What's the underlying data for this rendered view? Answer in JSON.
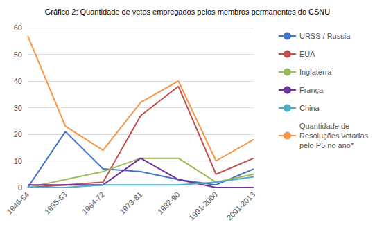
{
  "chart_data": {
    "type": "line",
    "title": "Gráfico 2: Quantidade de vetos empregados pelos membros permanentes do CSNU",
    "categories": [
      "1946-54",
      "1955-63",
      "1964-72",
      "1973-81",
      "1982-90",
      "1991-2000",
      "2001-2013"
    ],
    "series": [
      {
        "name": "URSS / Russia",
        "color": "#4472C4",
        "values": [
          0,
          21,
          7,
          6,
          3,
          1,
          7
        ]
      },
      {
        "name": "EUA",
        "color": "#C0504D",
        "values": [
          0,
          1,
          2,
          27,
          38,
          5,
          11
        ]
      },
      {
        "name": "Inglaterra",
        "color": "#9BBB59",
        "values": [
          0,
          3,
          6,
          11,
          11,
          2,
          5
        ]
      },
      {
        "name": "França",
        "color": "#7030A0",
        "values": [
          1,
          1,
          1,
          11,
          3,
          0,
          0
        ]
      },
      {
        "name": "China",
        "color": "#4BACC6",
        "values": [
          0,
          0,
          1,
          1,
          1,
          2,
          4
        ]
      },
      {
        "name": "Quantidade de\nResoluções vetadas\npelo P5 no ano*",
        "color": "#F79646",
        "values": [
          57,
          23,
          14,
          32,
          40,
          10,
          18
        ]
      }
    ],
    "ylim": [
      0,
      60
    ],
    "yticks": [
      0,
      10,
      20,
      30,
      40,
      50,
      60
    ],
    "grid": true,
    "legend": "right"
  }
}
